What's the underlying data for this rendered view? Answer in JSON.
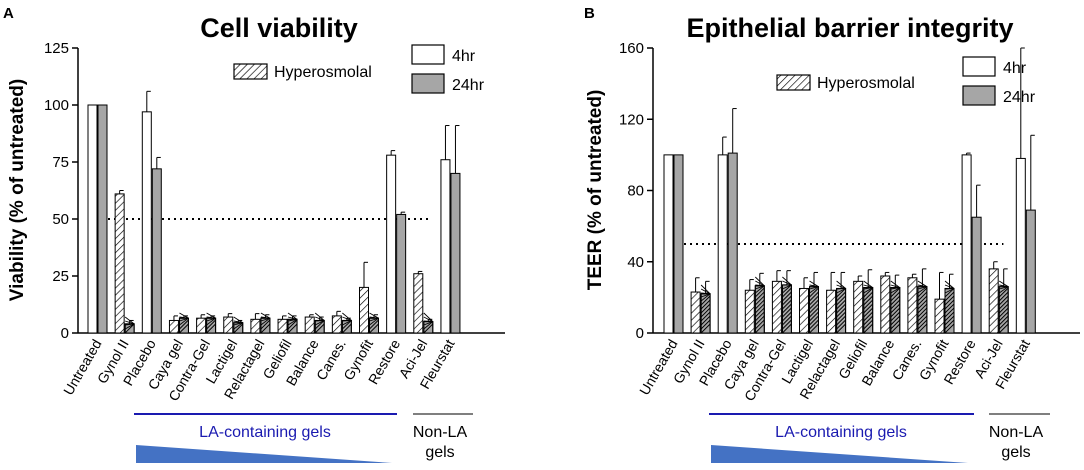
{
  "colors": {
    "bar_4hr": "#ffffff",
    "bar_24hr": "#a6a6a6",
    "stroke": "#000000",
    "bracket_blue": "#1a1ab0",
    "bracket_gray": "#7f7f7f",
    "wedge": "#4472c4"
  },
  "chart_data": [
    {
      "panel": "A",
      "type": "bar",
      "title": "Cell viability",
      "ylabel": "Viability (% of untreated)",
      "ylim": [
        0,
        125
      ],
      "yticks": [
        0,
        25,
        50,
        75,
        100,
        125
      ],
      "reference_line": 50,
      "categories": [
        "Untreated",
        "Gynol II",
        "Placebo",
        "Caya gel",
        "Contra-Gel",
        "Lactigel",
        "Relactagel",
        "Geliofil",
        "Balance",
        "Canes.",
        "Gynofit",
        "Restore",
        "Aci-Jel",
        "Fleurstat"
      ],
      "hyperosmolal": [
        false,
        true,
        false,
        true,
        true,
        true,
        true,
        true,
        true,
        true,
        true,
        false,
        true,
        false
      ],
      "series": [
        {
          "name": "4hr",
          "values": [
            100,
            61,
            97,
            5.5,
            6.5,
            7,
            6,
            6,
            7,
            7.5,
            20,
            78,
            26,
            76
          ],
          "errors": [
            0,
            1.5,
            9,
            2,
            1.5,
            1.5,
            2.5,
            1.5,
            1,
            2,
            11,
            2,
            1,
            15
          ]
        },
        {
          "name": "24hr",
          "values": [
            100,
            4,
            72,
            6.5,
            6.5,
            4.5,
            6.5,
            6,
            5.5,
            5.5,
            6.5,
            52,
            5,
            70
          ],
          "errors": [
            0,
            1.5,
            5,
            1,
            1,
            1,
            1.5,
            1.5,
            1.5,
            1,
            1.5,
            1,
            1,
            21
          ]
        }
      ],
      "legend": {
        "hyperosmolal": "Hyperosmolal",
        "series_4hr": "4hr",
        "series_24hr": "24hr"
      },
      "groups": {
        "la_label": "LA-containing gels",
        "nonla_line1": "Non-LA",
        "nonla_line2": "gels"
      }
    },
    {
      "panel": "B",
      "type": "bar",
      "title": "Epithelial barrier integrity",
      "ylabel": "TEER (% of untreated)",
      "ylim": [
        0,
        160
      ],
      "yticks": [
        0,
        40,
        80,
        120,
        160
      ],
      "reference_line": 50,
      "categories": [
        "Untreated",
        "Gynol II",
        "Placebo",
        "Caya gel",
        "Contra-Gel",
        "Lactigel",
        "Relactagel",
        "Geliofil",
        "Balance",
        "Canes.",
        "Gynofit",
        "Restore",
        "Aci-Jel",
        "Fleurstat"
      ],
      "hyperosmolal": [
        false,
        true,
        false,
        true,
        true,
        true,
        true,
        true,
        true,
        true,
        true,
        false,
        true,
        false
      ],
      "series": [
        {
          "name": "4hr",
          "values": [
            100,
            23,
            100,
            24,
            29,
            25,
            24,
            29,
            32,
            31,
            19,
            100,
            36,
            98
          ],
          "errors": [
            0,
            8,
            10,
            6,
            6,
            6,
            10,
            3,
            2,
            2,
            15,
            1,
            4,
            62
          ]
        },
        {
          "name": "24hr",
          "values": [
            100,
            22,
            101,
            26.5,
            27,
            26,
            25,
            25.5,
            25.5,
            26,
            25,
            65,
            26,
            69
          ],
          "errors": [
            0,
            7,
            25,
            7,
            8,
            8,
            9,
            10,
            7,
            10,
            8,
            18,
            10,
            42
          ]
        }
      ],
      "legend": {
        "hyperosmolal": "Hyperosmolal",
        "series_4hr": "4hr",
        "series_24hr": "24hr"
      },
      "groups": {
        "la_label": "LA-containing gels",
        "nonla_line1": "Non-LA",
        "nonla_line2": "gels"
      }
    }
  ]
}
